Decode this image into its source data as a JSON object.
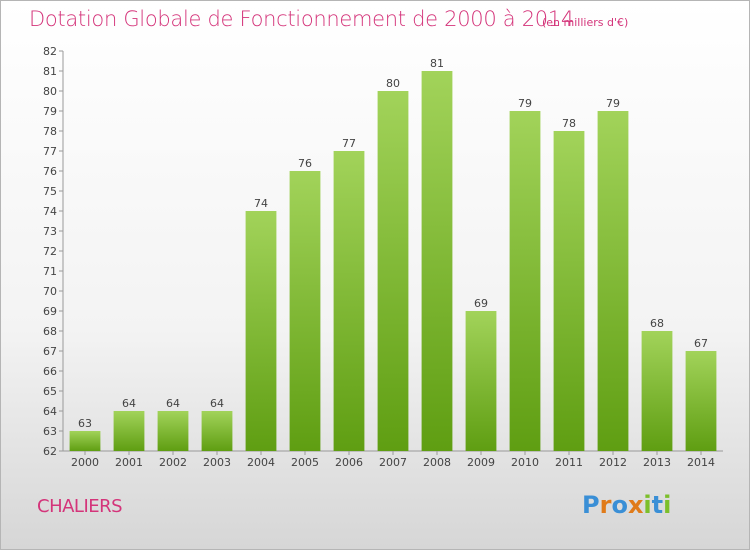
{
  "title": "Dotation Globale de Fonctionnement de 2000 à 2014",
  "subtitle": "(en milliers d'€)",
  "commune": "CHALIERS",
  "logo": {
    "p": "P",
    "r": "r",
    "o": "o",
    "x": "x",
    "i1": "i",
    "t": "t",
    "i2": "i"
  },
  "colors": {
    "bar_top": "#a2d35a",
    "bar_bottom": "#5f9e12",
    "title": "#d4347a"
  },
  "chart_data": {
    "type": "bar",
    "categories": [
      "2000",
      "2001",
      "2002",
      "2003",
      "2004",
      "2005",
      "2006",
      "2007",
      "2008",
      "2009",
      "2010",
      "2011",
      "2012",
      "2013",
      "2014"
    ],
    "values": [
      63,
      64,
      64,
      64,
      74,
      76,
      77,
      80,
      81,
      69,
      79,
      78,
      79,
      68,
      67
    ],
    "title": "Dotation Globale de Fonctionnement de 2000 à 2014",
    "xlabel": "",
    "ylabel": "",
    "ylim": [
      62,
      82
    ],
    "yticks": [
      62,
      63,
      64,
      65,
      66,
      67,
      68,
      69,
      70,
      71,
      72,
      73,
      74,
      75,
      76,
      77,
      78,
      79,
      80,
      81,
      82
    ],
    "grid": false,
    "legend": "none"
  }
}
